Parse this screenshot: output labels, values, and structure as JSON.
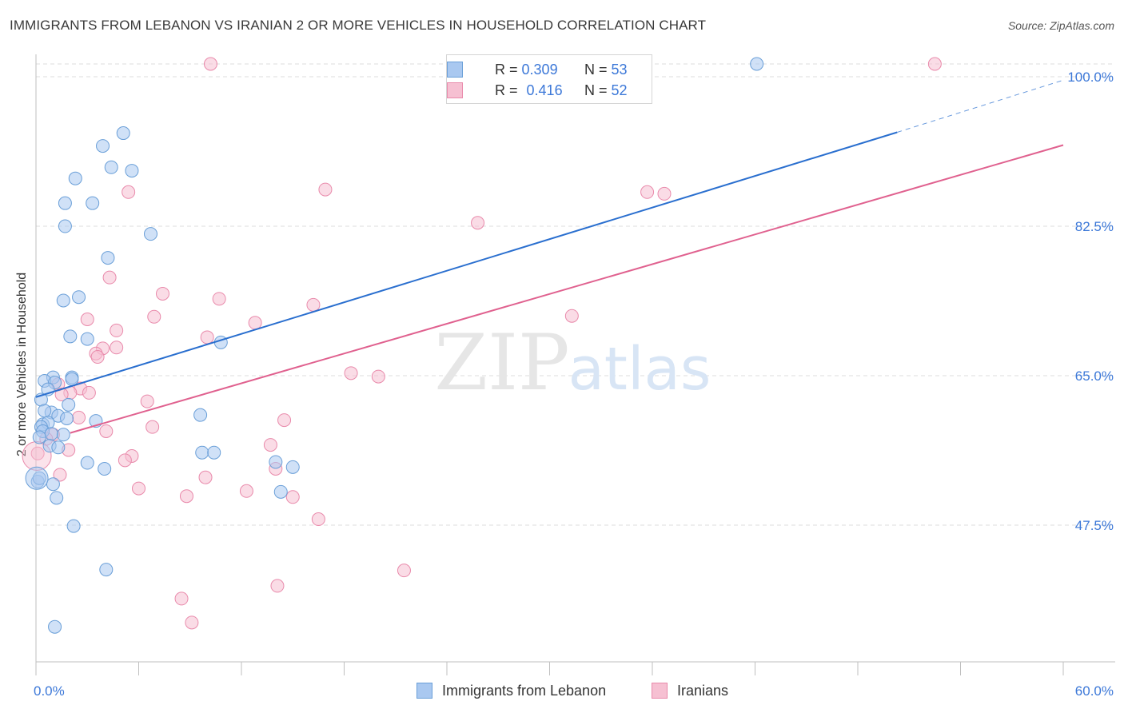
{
  "title": "IMMIGRANTS FROM LEBANON VS IRANIAN 2 OR MORE VEHICLES IN HOUSEHOLD CORRELATION CHART",
  "source": "Source: ZipAtlas.com",
  "watermark": {
    "zip": "ZIP",
    "atlas": "atlas"
  },
  "legend": {
    "rows": [
      {
        "r_label": "R =",
        "r_value": "0.309",
        "n_label": "N =",
        "n_value": "53"
      },
      {
        "r_label": "R =",
        "r_value": "0.416",
        "n_label": "N =",
        "n_value": "52"
      }
    ]
  },
  "bottom_legend": {
    "series1": "Immigrants from Lebanon",
    "series2": "Iranians"
  },
  "colors": {
    "blue_fill": "#a9c8f0",
    "blue_stroke": "#6a9fd8",
    "blue_line": "#2a6fcf",
    "pink_fill": "#f6c0d2",
    "pink_stroke": "#e98aab",
    "pink_line": "#e0618f",
    "axis_text": "#3c78d8",
    "grid": "#dcdcdc"
  },
  "chart_data": {
    "type": "scatter",
    "title": "IMMIGRANTS FROM LEBANON VS IRANIAN 2 OR MORE VEHICLES IN HOUSEHOLD CORRELATION CHART",
    "xlabel": "",
    "ylabel": "2 or more Vehicles in Household",
    "xlim": [
      0,
      60
    ],
    "ylim": [
      31.5,
      101.5
    ],
    "x_tick_labels": [
      {
        "value": 0,
        "label": "0.0%"
      },
      {
        "value": 60,
        "label": "60.0%"
      }
    ],
    "x_minor_ticks": [
      0,
      6,
      12,
      18,
      24,
      30,
      36,
      42,
      48,
      54,
      60
    ],
    "y_ticks": [
      {
        "value": 100,
        "label": "100.0%"
      },
      {
        "value": 82.5,
        "label": "82.5%"
      },
      {
        "value": 65,
        "label": "65.0%"
      },
      {
        "value": 47.5,
        "label": "47.5%"
      }
    ],
    "series": [
      {
        "name": "Immigrants from Lebanon",
        "color": "#a9c8f0",
        "r": 0.309,
        "n": 53,
        "trend": {
          "x0": 0,
          "y0": 62.5,
          "x1": 50.3,
          "y1": 93.5,
          "dash_to_x": 60,
          "dash_to_y": 99.6
        },
        "points": [
          [
            42.1,
            101.5
          ],
          [
            5.1,
            93.4
          ],
          [
            3.9,
            91.9
          ],
          [
            4.4,
            89.4
          ],
          [
            5.6,
            89.0
          ],
          [
            2.3,
            88.1
          ],
          [
            1.7,
            85.2
          ],
          [
            3.3,
            85.2
          ],
          [
            1.7,
            82.5
          ],
          [
            6.7,
            81.6
          ],
          [
            4.2,
            78.8
          ],
          [
            1.6,
            73.8
          ],
          [
            2.5,
            74.2
          ],
          [
            2.0,
            69.6
          ],
          [
            3.0,
            69.3
          ],
          [
            10.8,
            68.9
          ],
          [
            2.1,
            64.8
          ],
          [
            1.0,
            64.8
          ],
          [
            2.1,
            64.6
          ],
          [
            0.5,
            64.4
          ],
          [
            1.1,
            64.2
          ],
          [
            0.7,
            63.4
          ],
          [
            1.9,
            61.6
          ],
          [
            0.9,
            60.7
          ],
          [
            1.3,
            60.3
          ],
          [
            1.8,
            60.0
          ],
          [
            9.6,
            60.4
          ],
          [
            3.5,
            59.7
          ],
          [
            0.4,
            59.3
          ],
          [
            0.7,
            59.5
          ],
          [
            0.3,
            59.0
          ],
          [
            0.4,
            58.5
          ],
          [
            1.6,
            58.1
          ],
          [
            0.9,
            58.2
          ],
          [
            0.2,
            57.8
          ],
          [
            0.8,
            56.8
          ],
          [
            1.3,
            56.6
          ],
          [
            9.7,
            56.0
          ],
          [
            10.4,
            56.0
          ],
          [
            3.0,
            54.8
          ],
          [
            4.0,
            54.1
          ],
          [
            14.0,
            54.9
          ],
          [
            15.0,
            54.3
          ],
          [
            0.1,
            52.6
          ],
          [
            1.0,
            52.3
          ],
          [
            14.3,
            51.4
          ],
          [
            1.2,
            50.7
          ],
          [
            2.2,
            47.4
          ],
          [
            4.1,
            42.3
          ],
          [
            1.1,
            35.6
          ],
          [
            0.3,
            62.2
          ],
          [
            0.5,
            60.9
          ],
          [
            0.2,
            53.0
          ]
        ]
      },
      {
        "name": "Iranians",
        "color": "#f6c0d2",
        "r": 0.416,
        "n": 52,
        "trend": {
          "x0": 2.0,
          "y0": 58.3,
          "x1": 60,
          "y1": 92.0
        },
        "points": [
          [
            10.2,
            101.5
          ],
          [
            52.5,
            101.5
          ],
          [
            16.9,
            86.8
          ],
          [
            35.7,
            86.5
          ],
          [
            36.7,
            86.3
          ],
          [
            5.4,
            86.5
          ],
          [
            25.8,
            82.9
          ],
          [
            4.3,
            76.5
          ],
          [
            7.4,
            74.6
          ],
          [
            10.7,
            74.0
          ],
          [
            16.2,
            73.3
          ],
          [
            31.3,
            72.0
          ],
          [
            6.9,
            71.9
          ],
          [
            3.0,
            71.6
          ],
          [
            12.8,
            71.2
          ],
          [
            4.7,
            70.3
          ],
          [
            10.0,
            69.5
          ],
          [
            3.9,
            68.2
          ],
          [
            4.7,
            68.3
          ],
          [
            3.5,
            67.6
          ],
          [
            3.6,
            67.2
          ],
          [
            18.4,
            65.3
          ],
          [
            20.0,
            64.9
          ],
          [
            1.3,
            64.0
          ],
          [
            2.6,
            63.5
          ],
          [
            2.0,
            63.0
          ],
          [
            1.5,
            62.8
          ],
          [
            3.1,
            63.0
          ],
          [
            6.5,
            62.0
          ],
          [
            2.5,
            60.1
          ],
          [
            14.5,
            59.8
          ],
          [
            6.8,
            59.0
          ],
          [
            4.1,
            58.5
          ],
          [
            1.0,
            58.1
          ],
          [
            0.6,
            57.6
          ],
          [
            13.7,
            56.9
          ],
          [
            1.9,
            56.3
          ],
          [
            0.1,
            55.9
          ],
          [
            5.6,
            55.6
          ],
          [
            5.2,
            55.1
          ],
          [
            14.0,
            54.1
          ],
          [
            1.4,
            53.4
          ],
          [
            9.9,
            53.1
          ],
          [
            6.0,
            51.8
          ],
          [
            12.3,
            51.5
          ],
          [
            8.8,
            50.9
          ],
          [
            15.0,
            50.8
          ],
          [
            16.5,
            48.2
          ],
          [
            21.5,
            42.2
          ],
          [
            14.1,
            40.4
          ],
          [
            8.5,
            38.9
          ],
          [
            9.1,
            36.1
          ]
        ]
      }
    ]
  }
}
